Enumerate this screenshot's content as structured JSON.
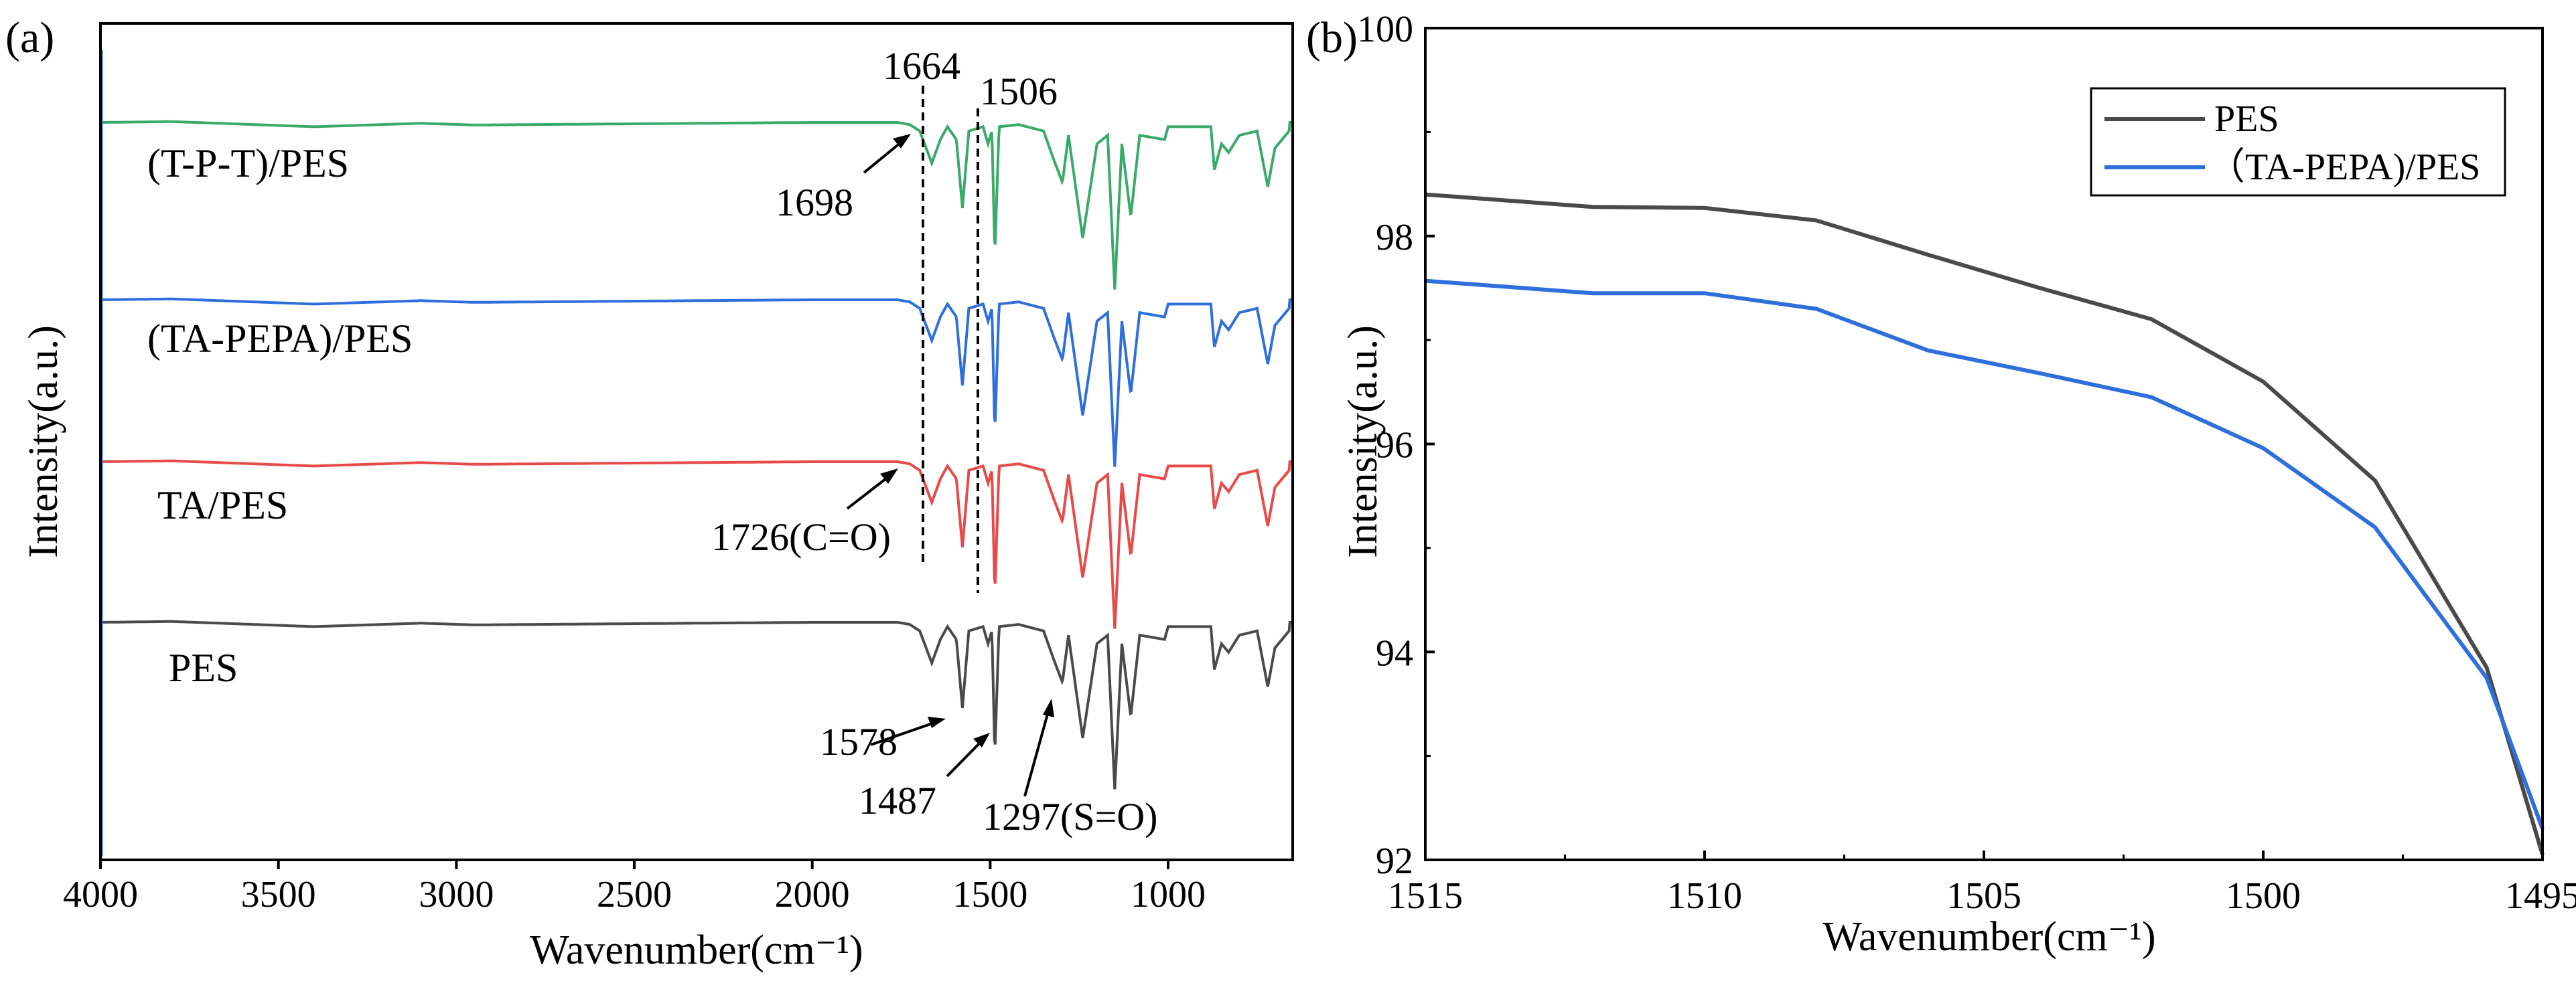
{
  "chart_data": [
    {
      "panel": "(a)",
      "type": "line",
      "xlabel": "Wavenumber(cm⁻¹)",
      "ylabel": "Intensity(a.u.)",
      "xlim": [
        4000,
        650
      ],
      "x_reversed": true,
      "x_ticks": [
        4000,
        3500,
        3000,
        2500,
        2000,
        1500,
        1000
      ],
      "y_ticks_shown": false,
      "series": [
        {
          "name": "PES",
          "color": "#4a4a4a",
          "offset": 0
        },
        {
          "name": "TA/PES",
          "color": "#e84a4a",
          "offset": 1
        },
        {
          "name": "(TA-PEPA)/PES",
          "color": "#2e6fdc",
          "offset": 2
        },
        {
          "name": "(T-P-T)/PES",
          "color": "#3aaa6a",
          "offset": 3
        }
      ],
      "spectrum_points": [
        [
          4000,
          0
        ],
        [
          3800,
          0.02
        ],
        [
          3400,
          -0.1
        ],
        [
          3100,
          -0.02
        ],
        [
          2950,
          -0.06
        ],
        [
          2000,
          0
        ],
        [
          1760,
          0
        ],
        [
          1726,
          -0.05
        ],
        [
          1698,
          -0.2
        ],
        [
          1664,
          -0.95
        ],
        [
          1640,
          -0.4
        ],
        [
          1620,
          -0.1
        ],
        [
          1595,
          -0.4
        ],
        [
          1578,
          -2.0
        ],
        [
          1560,
          -0.2
        ],
        [
          1520,
          -0.1
        ],
        [
          1506,
          -0.5
        ],
        [
          1495,
          -0.2
        ],
        [
          1487,
          -3.1
        ],
        [
          1475,
          -0.1
        ],
        [
          1420,
          -0.05
        ],
        [
          1350,
          -0.2
        ],
        [
          1320,
          -0.9
        ],
        [
          1297,
          -1.4
        ],
        [
          1280,
          -0.3
        ],
        [
          1240,
          -2.7
        ],
        [
          1200,
          -0.5
        ],
        [
          1170,
          -0.3
        ],
        [
          1150,
          -3.9
        ],
        [
          1130,
          -0.5
        ],
        [
          1105,
          -2.2
        ],
        [
          1080,
          -0.3
        ],
        [
          1010,
          -0.4
        ],
        [
          1000,
          -0.1
        ],
        [
          880,
          -0.1
        ],
        [
          870,
          -1.1
        ],
        [
          850,
          -0.5
        ],
        [
          830,
          -0.7
        ],
        [
          800,
          -0.3
        ],
        [
          750,
          -0.2
        ],
        [
          720,
          -1.5
        ],
        [
          700,
          -0.6
        ],
        [
          660,
          -0.2
        ]
      ],
      "markers": {
        "dashed_lines": [
          1664,
          1506
        ],
        "labels": [
          "1664",
          "1506"
        ]
      },
      "annotations": [
        "1698",
        "1726(C=O)",
        "1578",
        "1487",
        "1297(S=O)"
      ]
    },
    {
      "panel": "(b)",
      "type": "line",
      "xlabel": "Wavenumber(cm⁻¹)",
      "ylabel": "Intensity(a.u.)",
      "xlim": [
        1515,
        1495
      ],
      "x_reversed": true,
      "x_ticks": [
        1515,
        1510,
        1505,
        1500,
        1495
      ],
      "ylim": [
        92,
        100
      ],
      "y_ticks": [
        92,
        94,
        96,
        98,
        100
      ],
      "legend": "top-right",
      "series": [
        {
          "name": "PES",
          "color": "#4a4a4a",
          "x": [
            1515,
            1512,
            1510,
            1508,
            1506,
            1504,
            1502,
            1500,
            1498,
            1496,
            1495
          ],
          "values": [
            98.4,
            98.28,
            98.27,
            98.15,
            97.82,
            97.5,
            97.2,
            96.6,
            95.65,
            93.85,
            92.05
          ]
        },
        {
          "name": "（TA-PEPA)/PES",
          "color": "#2e6fdc",
          "x": [
            1515,
            1512,
            1510,
            1508,
            1506,
            1504,
            1502,
            1500,
            1498,
            1496,
            1495
          ],
          "values": [
            97.57,
            97.45,
            97.45,
            97.3,
            96.9,
            96.68,
            96.45,
            95.96,
            95.2,
            93.75,
            92.3
          ]
        }
      ]
    }
  ]
}
